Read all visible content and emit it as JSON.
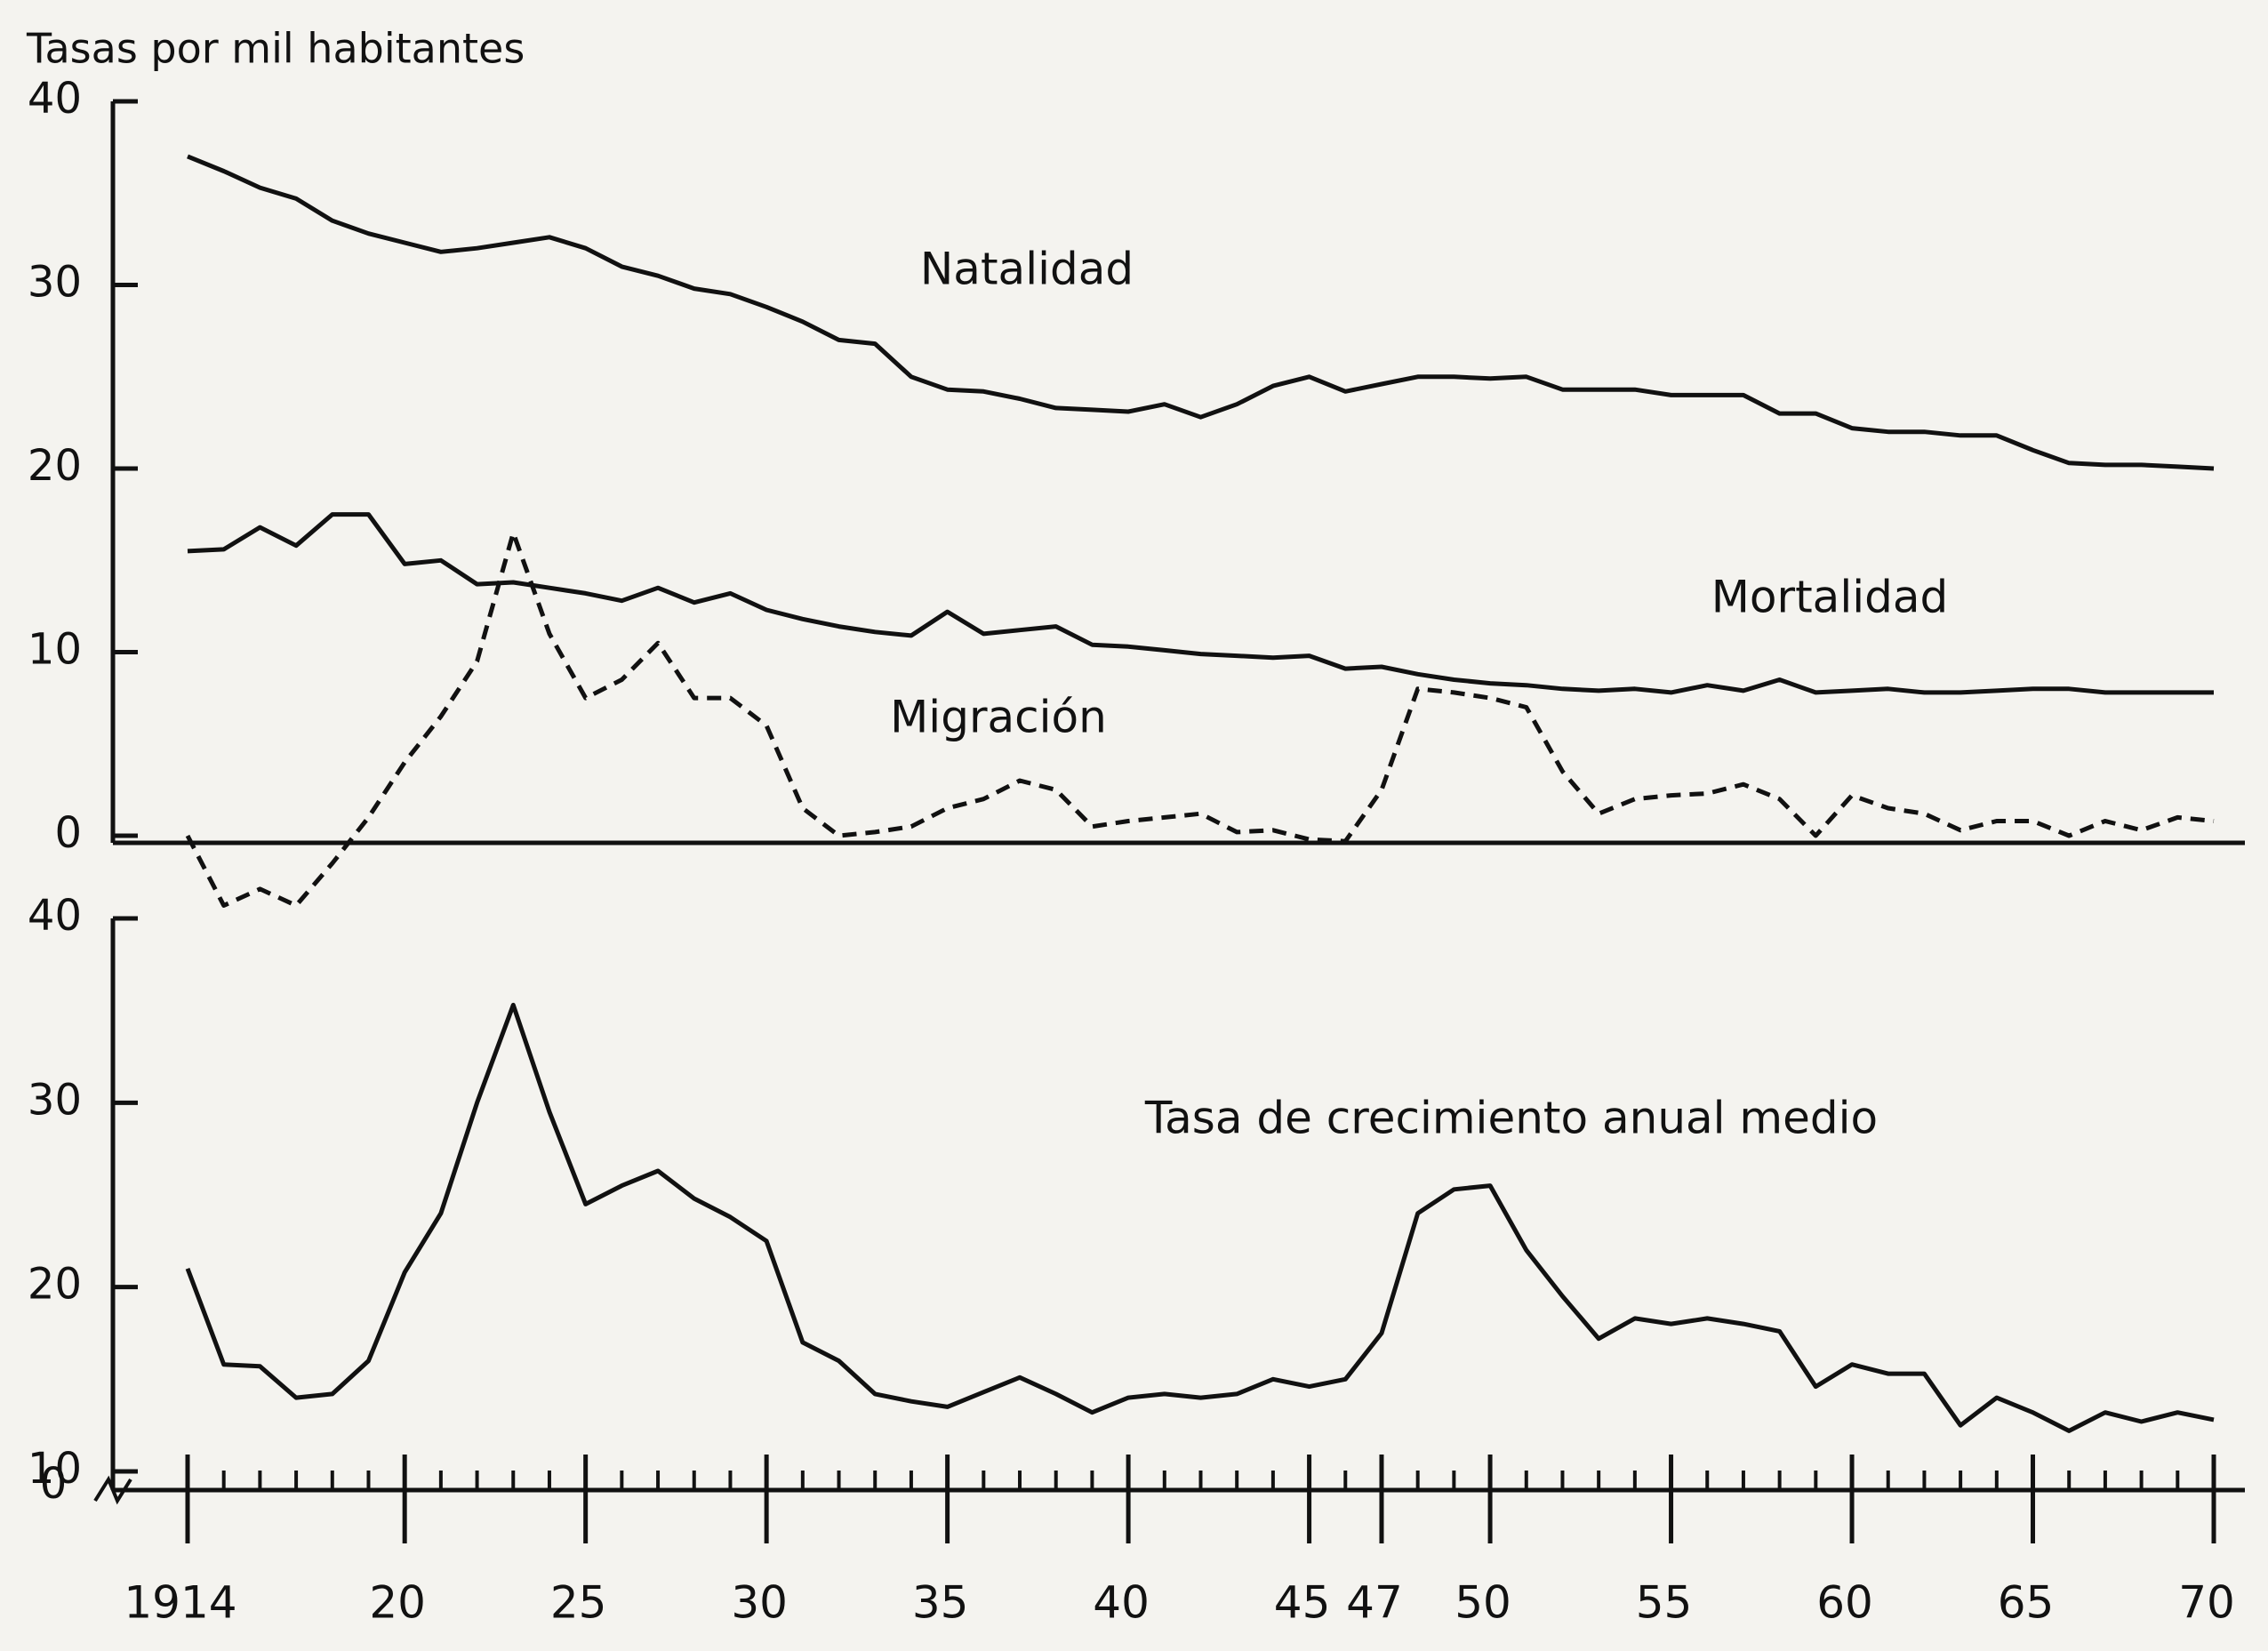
{
  "chart_data": [
    {
      "type": "line",
      "y_label": "Tasas por mil habitantes",
      "x": [
        1914,
        1915,
        1916,
        1917,
        1918,
        1919,
        1920,
        1921,
        1922,
        1923,
        1924,
        1925,
        1926,
        1927,
        1928,
        1929,
        1930,
        1931,
        1932,
        1933,
        1934,
        1935,
        1936,
        1937,
        1938,
        1939,
        1940,
        1941,
        1942,
        1943,
        1944,
        1945,
        1946,
        1947,
        1948,
        1949,
        1950,
        1951,
        1952,
        1953,
        1954,
        1955,
        1956,
        1957,
        1958,
        1959,
        1960,
        1961,
        1962,
        1963,
        1964,
        1965,
        1966,
        1967,
        1968,
        1969,
        1970
      ],
      "xlim": [
        1914,
        1970
      ],
      "ylim": [
        0,
        40
      ],
      "yticks": [
        0,
        10,
        20,
        30,
        40
      ],
      "series": [
        {
          "name": "Natalidad",
          "color": "#111111",
          "dashed": false,
          "values": [
            37,
            36.2,
            35.3,
            34.7,
            33.5,
            32.8,
            32.3,
            31.8,
            32,
            32.3,
            32.6,
            32,
            31,
            30.5,
            29.8,
            29.5,
            28.8,
            28,
            27,
            26.8,
            25,
            24.3,
            24.2,
            23.8,
            23.3,
            23.2,
            23.1,
            23.5,
            22.8,
            23.5,
            24.5,
            25,
            24.2,
            24.6,
            25,
            25,
            24.9,
            25,
            24.3,
            24.3,
            24.3,
            24,
            24,
            24,
            23,
            23,
            22.2,
            22,
            22,
            21.8,
            21.8,
            21,
            20.3,
            20.2,
            20.2,
            20.1,
            20
          ]
        },
        {
          "name": "Mortalidad",
          "color": "#111111",
          "dashed": false,
          "values": [
            15.5,
            15.6,
            16.8,
            15.8,
            17.5,
            17.5,
            14.8,
            15,
            13.7,
            13.8,
            13.5,
            13.2,
            12.8,
            13.5,
            12.7,
            13.2,
            12.3,
            11.8,
            11.4,
            11.1,
            10.9,
            12.2,
            11,
            11.2,
            11.4,
            10.4,
            10.3,
            10.1,
            9.9,
            9.8,
            9.7,
            9.8,
            9.1,
            9.2,
            8.8,
            8.5,
            8.3,
            8.2,
            8,
            7.9,
            8,
            7.8,
            8.2,
            7.9,
            8.5,
            7.8,
            7.9,
            8,
            7.8,
            7.8,
            7.9,
            8,
            8,
            7.8,
            7.8,
            7.8,
            7.8
          ]
        },
        {
          "name": "Migración",
          "color": "#111111",
          "dashed": true,
          "values": [
            0,
            -3.8,
            -2.9,
            -3.8,
            -1.5,
            1,
            4,
            6.5,
            9.5,
            16.5,
            11,
            7.5,
            8.5,
            10.5,
            7.5,
            7.5,
            6,
            1.5,
            0,
            0.2,
            0.5,
            1.5,
            2,
            3,
            2.5,
            0.5,
            0.8,
            1,
            1.2,
            0.2,
            0.3,
            -0.2,
            -0.3,
            2.5,
            8,
            7.8,
            7.5,
            7,
            3.5,
            1.2,
            2,
            2.2,
            2.3,
            2.8,
            2,
            0,
            2.2,
            1.5,
            1.2,
            0.3,
            0.8,
            0.8,
            0,
            0.8,
            0.3,
            1,
            0.8
          ]
        }
      ]
    },
    {
      "type": "line",
      "x": [
        1914,
        1915,
        1916,
        1917,
        1918,
        1919,
        1920,
        1921,
        1922,
        1923,
        1924,
        1925,
        1926,
        1927,
        1928,
        1929,
        1930,
        1931,
        1932,
        1933,
        1934,
        1935,
        1936,
        1937,
        1938,
        1939,
        1940,
        1941,
        1942,
        1943,
        1944,
        1945,
        1946,
        1947,
        1948,
        1949,
        1950,
        1951,
        1952,
        1953,
        1954,
        1955,
        1956,
        1957,
        1958,
        1959,
        1960,
        1961,
        1962,
        1963,
        1964,
        1965,
        1966,
        1967,
        1968,
        1969,
        1970
      ],
      "xlim": [
        1914,
        1970
      ],
      "xticks": [
        {
          "value": 1914,
          "label": "1914"
        },
        {
          "value": 1920,
          "label": "20"
        },
        {
          "value": 1925,
          "label": "25"
        },
        {
          "value": 1930,
          "label": "30"
        },
        {
          "value": 1935,
          "label": "35"
        },
        {
          "value": 1940,
          "label": "40"
        },
        {
          "value": 1945,
          "label": "45"
        },
        {
          "value": 1947,
          "label": "47"
        },
        {
          "value": 1950,
          "label": "50"
        },
        {
          "value": 1955,
          "label": "55"
        },
        {
          "value": 1960,
          "label": "60"
        },
        {
          "value": 1965,
          "label": "65"
        },
        {
          "value": 1970,
          "label": "70"
        }
      ],
      "ylim": [
        10,
        40
      ],
      "yticks": [
        10,
        20,
        30,
        40
      ],
      "axis_break_label": "0",
      "series": [
        {
          "name": "Tasa de crecimiento anual medio",
          "color": "#111111",
          "dashed": false,
          "values": [
            21,
            15.8,
            15.7,
            14,
            14.2,
            16,
            20.8,
            24,
            30,
            35.3,
            29.5,
            24.5,
            25.5,
            26.3,
            24.8,
            23.8,
            22.5,
            17,
            16,
            14.2,
            13.8,
            13.5,
            14.3,
            15.1,
            14.2,
            13.2,
            14,
            14.2,
            14,
            14.2,
            15,
            14.6,
            15,
            17.5,
            24,
            25.3,
            25.5,
            22,
            19.5,
            17.2,
            18.3,
            18,
            18.3,
            18,
            17.6,
            14.6,
            15.8,
            15.3,
            15.3,
            12.5,
            14,
            13.2,
            12.2,
            13.2,
            12.7,
            13.2,
            12.8
          ]
        }
      ]
    }
  ]
}
